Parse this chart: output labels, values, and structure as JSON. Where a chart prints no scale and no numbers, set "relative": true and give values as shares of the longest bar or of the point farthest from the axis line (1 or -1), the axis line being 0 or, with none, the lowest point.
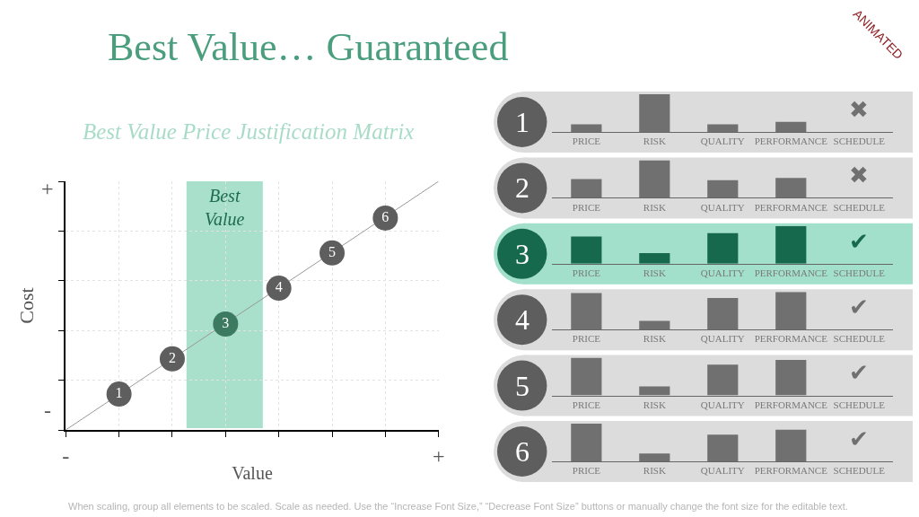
{
  "chart_data": [
    {
      "type": "scatter",
      "title": "Best Value… Guaranteed",
      "subtitle": "Best Value Price Justification Matrix",
      "xlabel": "Value",
      "ylabel": "Cost",
      "relative": true,
      "categories": [
        "-",
        null,
        null,
        null,
        null,
        null,
        null,
        "+"
      ],
      "grid": true,
      "legend": false,
      "marker": "circle",
      "series": [
        {
          "type": "line",
          "values": [
            0,
            0.143,
            0.286,
            0.429,
            0.571,
            0.714,
            0.857,
            1
          ],
          "color": "#999999",
          "marker": "none"
        },
        {
          "name": "1",
          "values": [
            null,
            0.144,
            null,
            null,
            null,
            null,
            null,
            null
          ],
          "color": "#5e5e5e"
        },
        {
          "name": "2",
          "values": [
            null,
            null,
            0.286,
            null,
            null,
            null,
            null,
            null
          ],
          "color": "#5e5e5e"
        },
        {
          "name": "3",
          "values": [
            null,
            null,
            null,
            0.426,
            null,
            null,
            null,
            null
          ],
          "color": "#3d7a62"
        },
        {
          "name": "4",
          "values": [
            null,
            null,
            null,
            null,
            0.57,
            null,
            null,
            null
          ],
          "color": "#5e5e5e"
        },
        {
          "name": "5",
          "values": [
            null,
            null,
            null,
            null,
            null,
            0.712,
            null,
            null
          ],
          "color": "#5e5e5e"
        },
        {
          "name": "6",
          "values": [
            null,
            null,
            null,
            null,
            null,
            null,
            0.852,
            null
          ],
          "color": "#5e5e5e"
        }
      ],
      "annotations": [
        "When scaling, group all elements to be scaled. Scale as needed. Use the “Increase Font Size,” “Decrease Font Size” buttons or manually change the font size for the editable text.",
        "ANIMATED",
        "-",
        "+",
        "Best\nValue"
      ]
    },
    {
      "type": "bar",
      "title": "1",
      "categories": [
        "PRICE",
        "RISK",
        "QUALITY",
        "PERFORMANCE",
        "SCHEDULE"
      ],
      "values": [
        0.2,
        1,
        0.2,
        0.27,
        null
      ],
      "color": "#707070",
      "relative": true,
      "annotations": [
        "✖"
      ]
    },
    {
      "type": "bar",
      "title": "2",
      "categories": [
        "PRICE",
        "RISK",
        "QUALITY",
        "PERFORMANCE",
        "SCHEDULE"
      ],
      "values": [
        0.5,
        1,
        0.47,
        0.53,
        null
      ],
      "color": "#707070",
      "relative": true,
      "annotations": [
        "✖"
      ]
    },
    {
      "type": "bar",
      "title": "3",
      "categories": [
        "PRICE",
        "RISK",
        "QUALITY",
        "PERFORMANCE",
        "SCHEDULE"
      ],
      "values": [
        0.72,
        0.28,
        0.81,
        1,
        null
      ],
      "color": "#17694e",
      "relative": true,
      "annotations": [
        "✔"
      ]
    },
    {
      "type": "bar",
      "title": "4",
      "categories": [
        "PRICE",
        "RISK",
        "QUALITY",
        "PERFORMANCE",
        "SCHEDULE"
      ],
      "values": [
        0.97,
        0.23,
        0.84,
        1,
        null
      ],
      "color": "#707070",
      "relative": true,
      "annotations": [
        "✔"
      ]
    },
    {
      "type": "bar",
      "title": "5",
      "categories": [
        "PRICE",
        "RISK",
        "QUALITY",
        "PERFORMANCE",
        "SCHEDULE"
      ],
      "values": [
        1,
        0.24,
        0.82,
        0.94,
        null
      ],
      "color": "#707070",
      "relative": true,
      "annotations": [
        "✔"
      ]
    },
    {
      "type": "bar",
      "title": "6",
      "categories": [
        "PRICE",
        "RISK",
        "QUALITY",
        "PERFORMANCE",
        "SCHEDULE"
      ],
      "values": [
        1,
        0.21,
        0.71,
        0.84,
        null
      ],
      "color": "#707070",
      "relative": true,
      "annotations": [
        "✔"
      ]
    }
  ]
}
